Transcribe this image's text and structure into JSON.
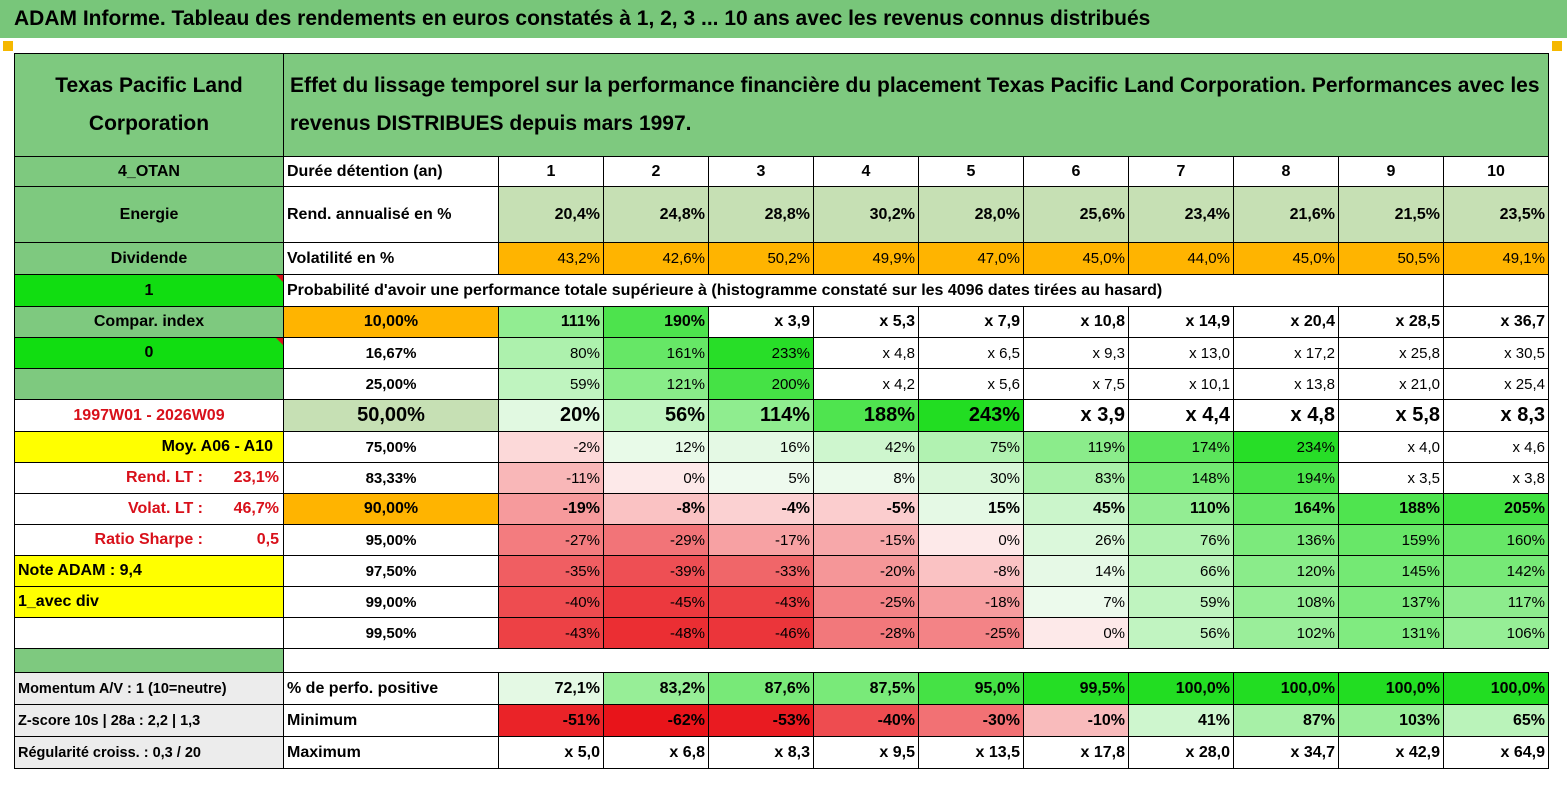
{
  "title": "ADAM Informe. Tableau des rendements en euros constatés à 1, 2, 3 ... 10 ans avec les revenus connus distribués",
  "colors": {
    "title_bg": "#78c67a",
    "header_green": "#7ec97f",
    "label_green": "#7ec97f",
    "bright_green": "#11dd11",
    "orange": "#ffb400",
    "yellow": "#ffff00",
    "light_green": "#c6e0b4",
    "red": "#d8101a"
  },
  "header": {
    "company": "Texas Pacific Land Corporation",
    "description": "Effet du lissage temporel sur la performance financière du placement Texas Pacific Land Corporation. Performances avec les revenus DISTRIBUES depuis mars 1997."
  },
  "rows": {
    "duration": {
      "side": "4_OTAN",
      "label": "Durée détention (an)",
      "values": [
        "1",
        "2",
        "3",
        "4",
        "5",
        "6",
        "7",
        "8",
        "9",
        "10"
      ]
    },
    "annual_return": {
      "side": "Energie",
      "label": "Rend. annualisé en %",
      "values": [
        "20,4%",
        "24,8%",
        "28,8%",
        "30,2%",
        "28,0%",
        "25,6%",
        "23,4%",
        "21,6%",
        "21,5%",
        "23,5%"
      ]
    },
    "volatility": {
      "side": "Dividende",
      "label": "Volatilité en %",
      "values": [
        "43,2%",
        "42,6%",
        "50,2%",
        "49,9%",
        "47,0%",
        "45,0%",
        "44,0%",
        "45,0%",
        "50,5%",
        "49,1%"
      ]
    },
    "prob_header": {
      "side": "1",
      "label": "Probabilité d'avoir une performance totale supérieure à (histogramme constaté sur les 4096 dates tirées au hasard)"
    }
  },
  "percentiles": [
    {
      "side": "Compar. index",
      "pct": "10,00%",
      "values": [
        "111%",
        "190%",
        "x 3,9",
        "x 5,3",
        "x 7,9",
        "x 10,8",
        "x 14,9",
        "x 20,4",
        "x 28,5",
        "x 36,7"
      ]
    },
    {
      "side": "0",
      "pct": "16,67%",
      "values": [
        "80%",
        "161%",
        "233%",
        "x 4,8",
        "x 6,5",
        "x 9,3",
        "x 13,0",
        "x 17,2",
        "x 25,8",
        "x 30,5"
      ]
    },
    {
      "side": "",
      "pct": "25,00%",
      "values": [
        "59%",
        "121%",
        "200%",
        "x 4,2",
        "x 5,6",
        "x 7,5",
        "x 10,1",
        "x 13,8",
        "x 21,0",
        "x 25,4"
      ]
    },
    {
      "side": "1997W01 - 2026W09",
      "pct": "50,00%",
      "values": [
        "20%",
        "56%",
        "114%",
        "188%",
        "243%",
        "x 3,9",
        "x 4,4",
        "x 4,8",
        "x 5,8",
        "x 8,3"
      ]
    },
    {
      "side": "Moy. A06 - A10",
      "pct": "75,00%",
      "values": [
        "-2%",
        "12%",
        "16%",
        "42%",
        "75%",
        "119%",
        "174%",
        "234%",
        "x 4,0",
        "x 4,6"
      ]
    },
    {
      "side": "Rend. LT :",
      "side_value": "23,1%",
      "pct": "83,33%",
      "values": [
        "-11%",
        "0%",
        "5%",
        "8%",
        "30%",
        "83%",
        "148%",
        "194%",
        "x 3,5",
        "x 3,8"
      ]
    },
    {
      "side": "Volat. LT :",
      "side_value": "46,7%",
      "pct": "90,00%",
      "values": [
        "-19%",
        "-8%",
        "-4%",
        "-5%",
        "15%",
        "45%",
        "110%",
        "164%",
        "188%",
        "205%"
      ]
    },
    {
      "side": "Ratio Sharpe :",
      "side_value": "0,5",
      "pct": "95,00%",
      "values": [
        "-27%",
        "-29%",
        "-17%",
        "-15%",
        "0%",
        "26%",
        "76%",
        "136%",
        "159%",
        "160%"
      ]
    },
    {
      "side": "Note ADAM : 9,4",
      "pct": "97,50%",
      "values": [
        "-35%",
        "-39%",
        "-33%",
        "-20%",
        "-8%",
        "14%",
        "66%",
        "120%",
        "145%",
        "142%"
      ]
    },
    {
      "side": "1_avec div",
      "pct": "99,00%",
      "values": [
        "-40%",
        "-45%",
        "-43%",
        "-25%",
        "-18%",
        "7%",
        "59%",
        "108%",
        "137%",
        "117%"
      ]
    },
    {
      "side": "",
      "pct": "99,50%",
      "values": [
        "-43%",
        "-48%",
        "-46%",
        "-28%",
        "-25%",
        "0%",
        "56%",
        "102%",
        "131%",
        "106%"
      ]
    }
  ],
  "bottom": [
    {
      "side": "Momentum A/V : 1 (10=neutre)",
      "label": "% de perfo. positive",
      "values": [
        "72,1%",
        "83,2%",
        "87,6%",
        "87,5%",
        "95,0%",
        "99,5%",
        "100,0%",
        "100,0%",
        "100,0%",
        "100,0%"
      ]
    },
    {
      "side": "Z-score 10s | 28a : 2,2 | 1,3",
      "label": "Minimum",
      "values": [
        "-51%",
        "-62%",
        "-53%",
        "-40%",
        "-30%",
        "-10%",
        "41%",
        "87%",
        "103%",
        "65%"
      ]
    },
    {
      "side": "Régularité croiss. : 0,3 / 20",
      "label": "Maximum",
      "values": [
        "x 5,0",
        "x 6,8",
        "x 8,3",
        "x 9,5",
        "x 13,5",
        "x 17,8",
        "x 28,0",
        "x 34,7",
        "x 42,9",
        "x 64,9"
      ]
    }
  ]
}
